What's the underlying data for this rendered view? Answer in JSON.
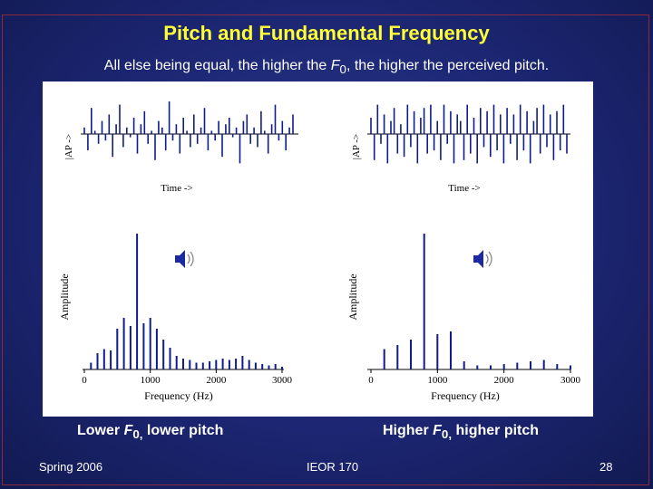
{
  "slide": {
    "title": "Pitch and Fundamental Frequency",
    "subtitle_pre": "All else being equal, the higher the ",
    "subtitle_var": "F",
    "subtitle_sub": "0",
    "subtitle_post": ", the higher the perceived pitch.",
    "caption_left": {
      "pre": "Lower ",
      "var": "F",
      "sub": "0,",
      "post": " lower pitch"
    },
    "caption_right": {
      "pre": "Higher ",
      "var": "F",
      "sub": "0,",
      "post": " higher pitch"
    },
    "footer": {
      "left": "Spring 2006",
      "center": "IEOR 170",
      "page": "28"
    },
    "colors": {
      "title": "#ffff33",
      "background": "#1c2672",
      "frame": "#8a2a3c"
    }
  },
  "chart_data": [
    {
      "type": "line",
      "panel": "waveform-low",
      "ylabel": "|AP ->",
      "xlabel": "Time ->",
      "series": [
        {
          "values": [
            0.2,
            -0.5,
            0.8,
            0.1,
            -0.3,
            0.4,
            -0.2,
            0.6,
            -0.7,
            0.3,
            0.9,
            -0.4,
            0.2,
            -0.1,
            0.5,
            -0.6,
            0.3,
            0.7,
            -0.3,
            0.1,
            -0.8,
            0.4,
            0.2,
            -0.5,
            1.0,
            -0.2,
            0.3,
            -0.6,
            0.5,
            0.1,
            -0.4,
            0.6,
            -0.3,
            0.2,
            0.8,
            -0.5,
            0.1,
            -0.2,
            0.4,
            -0.7,
            0.3,
            0.5,
            -0.1,
            0.2,
            -0.9,
            0.4,
            0.6,
            -0.3,
            0.2,
            -0.4,
            0.7,
            0.1,
            -0.6,
            0.3,
            0.9,
            -0.2,
            0.4,
            -0.5,
            0.2,
            0.6
          ]
        }
      ]
    },
    {
      "type": "line",
      "panel": "waveform-high",
      "ylabel": "|AP ->",
      "xlabel": "Time ->",
      "series": [
        {
          "values": [
            0.5,
            -0.8,
            0.9,
            -0.3,
            0.6,
            -0.9,
            0.4,
            0.8,
            -0.6,
            0.3,
            -0.7,
            0.9,
            -0.4,
            0.7,
            -0.9,
            0.5,
            0.8,
            -0.6,
            0.9,
            -0.5,
            0.4,
            -0.8,
            0.9,
            -0.3,
            0.7,
            -0.9,
            0.6,
            0.4,
            -0.8,
            0.9,
            -0.6,
            0.5,
            -0.9,
            0.8,
            -0.4,
            0.7,
            -0.7,
            0.9,
            -0.5,
            0.6,
            -0.9,
            0.8,
            -0.3,
            0.6,
            -0.8,
            0.9,
            -0.5,
            0.7,
            -0.9,
            0.4,
            0.8,
            -0.6,
            0.9,
            -0.4,
            0.6,
            -0.8,
            0.7,
            -0.5,
            0.9,
            -0.6
          ]
        }
      ]
    },
    {
      "type": "bar",
      "panel": "spectrum-low",
      "xlabel": "Frequency (Hz)",
      "ylabel": "Amplitude",
      "xticks": [
        0,
        1000,
        2000,
        3000
      ],
      "xlim": [
        0,
        3000
      ],
      "ylim": [
        0,
        1
      ],
      "x": [
        100,
        200,
        300,
        400,
        500,
        600,
        700,
        800,
        900,
        1000,
        1100,
        1200,
        1300,
        1400,
        1500,
        1600,
        1700,
        1800,
        1900,
        2000,
        2100,
        2200,
        2300,
        2400,
        2500,
        2600,
        2700,
        2800,
        2900,
        3000
      ],
      "values": [
        0.05,
        0.12,
        0.15,
        0.14,
        0.3,
        0.38,
        0.32,
        1.0,
        0.34,
        0.38,
        0.3,
        0.22,
        0.16,
        0.1,
        0.08,
        0.07,
        0.05,
        0.05,
        0.06,
        0.07,
        0.08,
        0.07,
        0.08,
        0.1,
        0.07,
        0.05,
        0.04,
        0.03,
        0.04,
        0.02
      ]
    },
    {
      "type": "bar",
      "panel": "spectrum-high",
      "xlabel": "Frequency (Hz)",
      "ylabel": "Amplitude",
      "xticks": [
        0,
        1000,
        2000,
        3000
      ],
      "xlim": [
        0,
        3000
      ],
      "ylim": [
        0,
        1
      ],
      "x": [
        200,
        400,
        600,
        800,
        1000,
        1200,
        1400,
        1600,
        1800,
        2000,
        2200,
        2400,
        2600,
        2800,
        3000
      ],
      "values": [
        0.15,
        0.18,
        0.22,
        1.0,
        0.26,
        0.28,
        0.06,
        0.03,
        0.03,
        0.04,
        0.05,
        0.06,
        0.07,
        0.04,
        0.03
      ]
    }
  ]
}
